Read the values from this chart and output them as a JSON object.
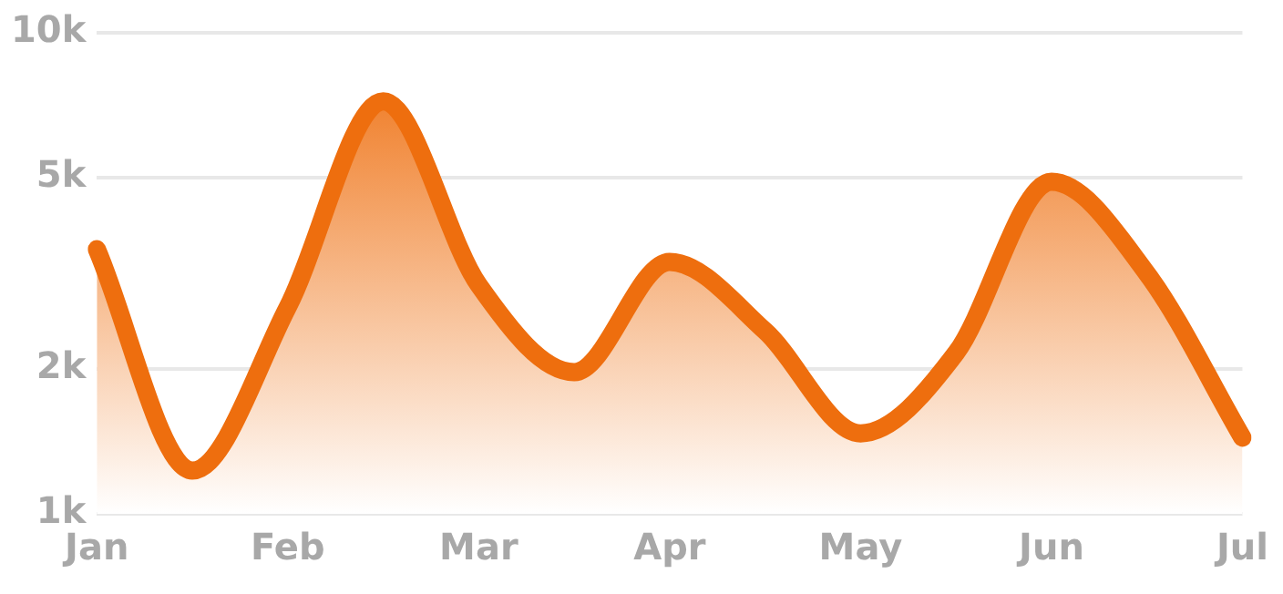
{
  "chart_data": {
    "type": "area",
    "categories": [
      "Jan",
      null,
      "Feb",
      null,
      "Mar",
      null,
      "Apr",
      null,
      "May",
      null,
      "Jun",
      null,
      "Jul"
    ],
    "series": [
      {
        "color": "#ee6e0e",
        "values": [
          3550,
          1230,
          2690,
          7200,
          2990,
          1970,
          3340,
          2400,
          1470,
          2160,
          4900,
          3160,
          1440
        ]
      }
    ],
    "log": "y",
    "ylim": [
      1000,
      10000
    ],
    "yticks": [
      {
        "value": 1000,
        "label": "1k"
      },
      {
        "value": 2000,
        "label": "2k"
      },
      {
        "value": 5000,
        "label": "5k"
      },
      {
        "value": 10000,
        "label": "10k"
      }
    ],
    "grid": "y",
    "legend": false,
    "marker": "none",
    "line_style": "solid"
  }
}
